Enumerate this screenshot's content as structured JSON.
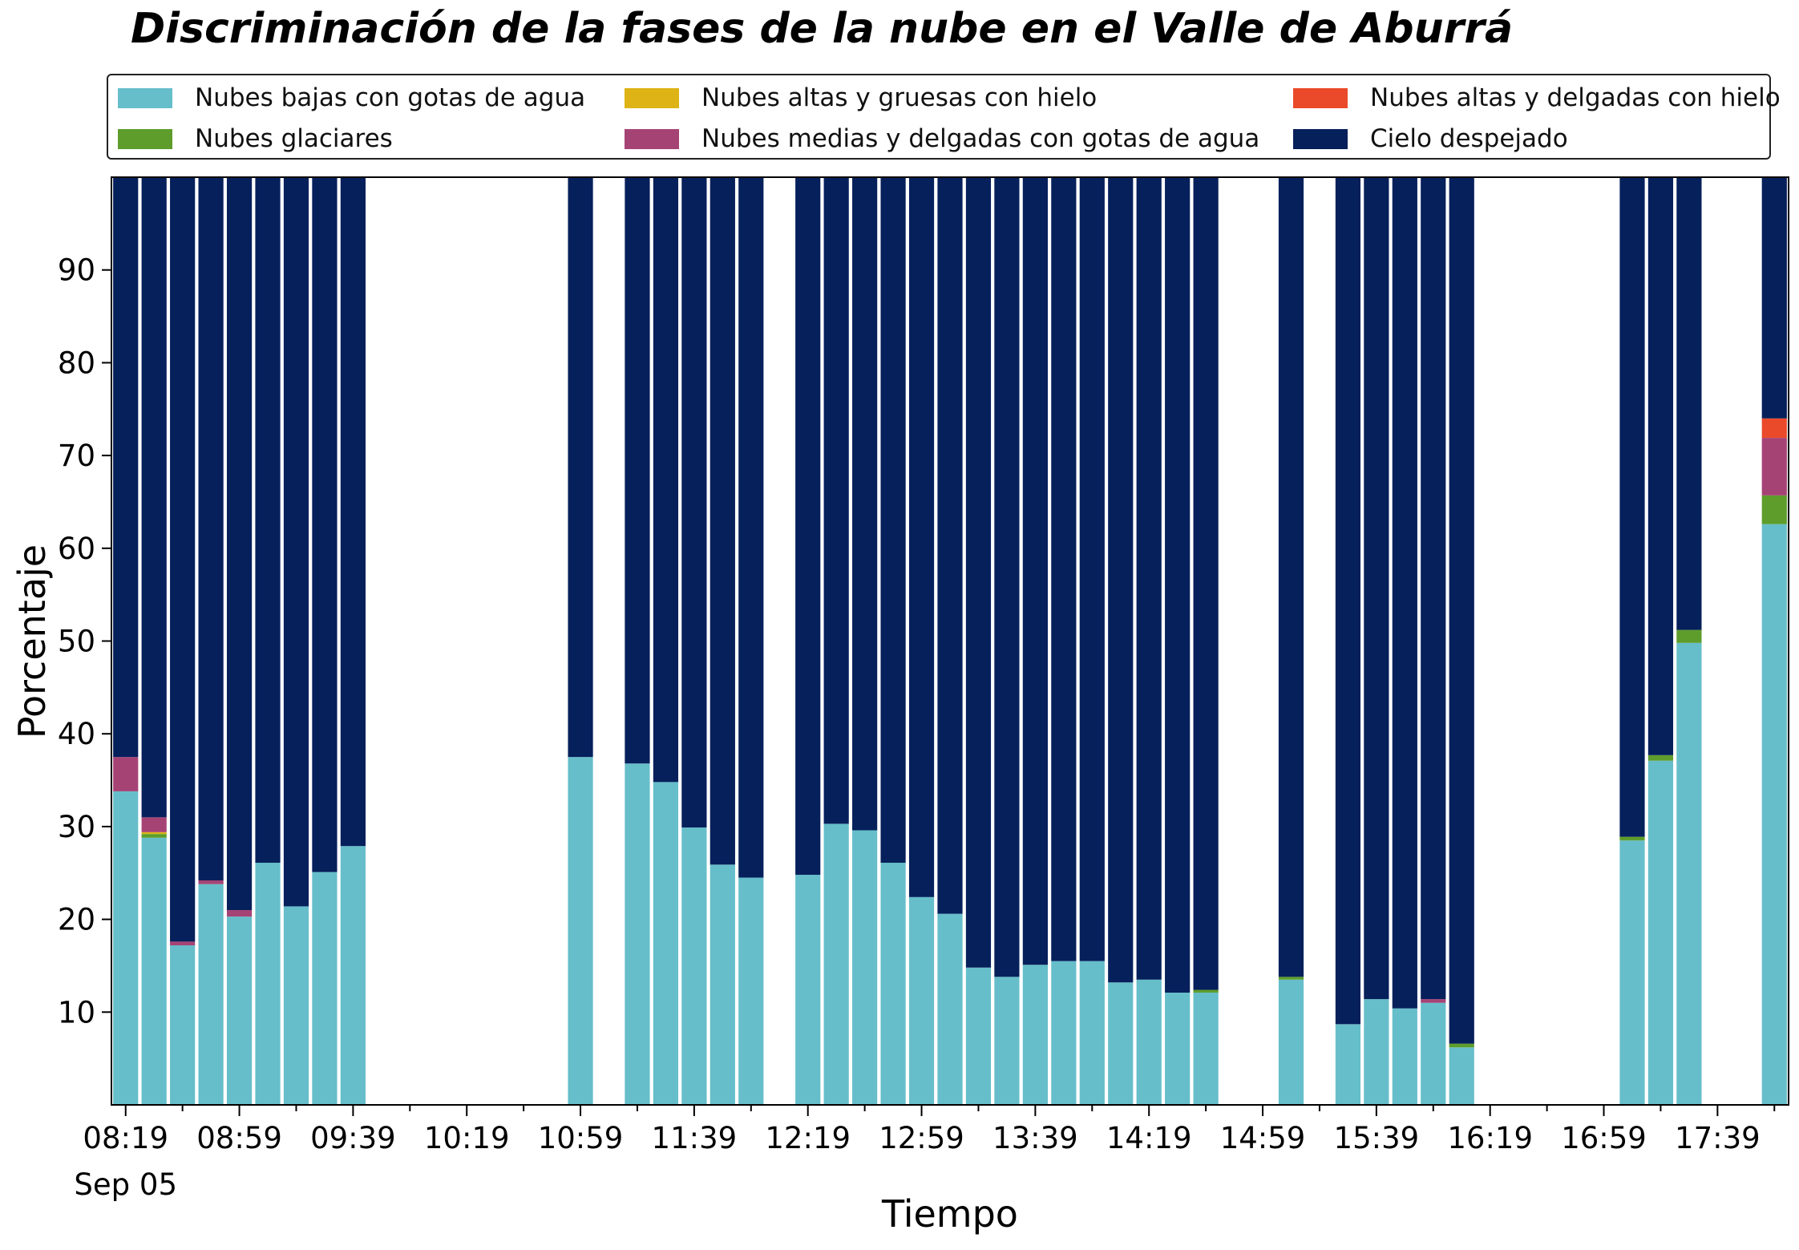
{
  "chart_data": {
    "type": "bar",
    "stacked": true,
    "title": "Discriminación de la fases de la nube en el Valle de Aburrá",
    "xlabel": "Tiempo",
    "ylabel": "Porcentaje",
    "ylim": [
      0,
      100
    ],
    "yticks": [
      10,
      20,
      30,
      40,
      50,
      60,
      70,
      80,
      90
    ],
    "grid": false,
    "legend_position": "top",
    "x_tick_labels": [
      "08:19",
      "08:59",
      "09:39",
      "10:19",
      "10:59",
      "11:39",
      "12:19",
      "12:59",
      "13:39",
      "14:19",
      "14:59",
      "15:39",
      "16:19",
      "16:59",
      "17:39"
    ],
    "x_date_label": "Sep 05",
    "x_minutes_start": "08:19",
    "x_minutes_end": "17:59",
    "x_slot_minutes": 10,
    "x": [
      "08:19",
      "08:29",
      "08:39",
      "08:49",
      "08:59",
      "09:09",
      "09:19",
      "09:29",
      "09:39",
      "10:59",
      "11:19",
      "11:29",
      "11:39",
      "11:49",
      "11:59",
      "12:19",
      "12:29",
      "12:39",
      "12:49",
      "12:59",
      "13:09",
      "13:19",
      "13:29",
      "13:39",
      "13:49",
      "13:59",
      "14:09",
      "14:19",
      "14:29",
      "14:39",
      "15:09",
      "15:29",
      "15:39",
      "15:49",
      "15:59",
      "16:09",
      "17:09",
      "17:19",
      "17:29",
      "17:59"
    ],
    "series": [
      {
        "name": "Nubes bajas con gotas de agua",
        "color": "#66BECA",
        "values": [
          33.8,
          28.8,
          17.2,
          23.8,
          20.3,
          26.1,
          21.4,
          25.1,
          27.9,
          37.5,
          36.8,
          34.8,
          29.9,
          25.9,
          24.5,
          24.8,
          30.3,
          29.6,
          26.1,
          22.4,
          20.6,
          14.8,
          13.8,
          15.1,
          15.5,
          15.5,
          13.2,
          13.5,
          12.1,
          12.1,
          13.5,
          8.7,
          11.4,
          10.4,
          11.0,
          6.2,
          28.5,
          37.1,
          49.8,
          62.6
        ]
      },
      {
        "name": "Nubes glaciares",
        "color": "#5E9D2C",
        "values": [
          0,
          0.4,
          0,
          0,
          0,
          0,
          0,
          0,
          0,
          0,
          0,
          0,
          0,
          0,
          0,
          0,
          0,
          0,
          0,
          0,
          0,
          0,
          0,
          0,
          0,
          0,
          0,
          0,
          0,
          0.3,
          0.3,
          0,
          0,
          0,
          0,
          0.4,
          0.4,
          0.6,
          1.4,
          3.1
        ]
      },
      {
        "name": "Nubes altas y gruesas con hielo",
        "color": "#DDB315",
        "values": [
          0,
          0.2,
          0,
          0,
          0,
          0,
          0,
          0,
          0,
          0,
          0,
          0,
          0,
          0,
          0,
          0,
          0,
          0,
          0,
          0,
          0,
          0,
          0,
          0,
          0,
          0,
          0,
          0,
          0,
          0,
          0,
          0,
          0,
          0,
          0,
          0,
          0,
          0,
          0,
          0
        ]
      },
      {
        "name": "Nubes medias y delgadas con gotas de agua",
        "color": "#A64375",
        "values": [
          3.7,
          1.6,
          0.4,
          0.4,
          0.7,
          0,
          0,
          0,
          0,
          0,
          0,
          0,
          0,
          0,
          0,
          0,
          0,
          0,
          0,
          0,
          0,
          0,
          0,
          0,
          0,
          0,
          0,
          0,
          0,
          0,
          0,
          0,
          0,
          0,
          0.4,
          0,
          0,
          0,
          0,
          6.2
        ]
      },
      {
        "name": "Nubes altas y delgadas con hielo",
        "color": "#EA4A2A",
        "values": [
          0,
          0,
          0,
          0,
          0,
          0,
          0,
          0,
          0,
          0,
          0,
          0,
          0,
          0,
          0,
          0,
          0,
          0,
          0,
          0,
          0,
          0,
          0,
          0,
          0,
          0,
          0,
          0,
          0,
          0,
          0,
          0,
          0,
          0,
          0,
          0,
          0,
          0,
          0,
          2.1
        ]
      },
      {
        "name": "Cielo despejado",
        "color": "#06205B",
        "values": [
          62.5,
          69.0,
          82.4,
          75.8,
          79.0,
          73.9,
          78.6,
          74.9,
          72.1,
          62.5,
          63.2,
          65.2,
          70.1,
          74.1,
          75.5,
          75.2,
          69.7,
          70.4,
          73.9,
          77.6,
          79.4,
          85.2,
          86.2,
          84.9,
          84.5,
          84.5,
          86.8,
          86.5,
          87.9,
          87.6,
          86.2,
          91.3,
          88.6,
          89.6,
          88.6,
          93.4,
          71.1,
          62.3,
          48.8,
          26.0
        ]
      }
    ]
  },
  "legend": {
    "items": [
      {
        "label": "Nubes bajas con gotas de agua",
        "color": "#66BECA"
      },
      {
        "label": "Nubes altas y gruesas con hielo",
        "color": "#DDB315"
      },
      {
        "label": "Nubes altas y delgadas con hielo",
        "color": "#EA4A2A"
      },
      {
        "label": "Nubes glaciares",
        "color": "#5E9D2C"
      },
      {
        "label": "Nubes medias y delgadas con gotas de agua",
        "color": "#A64375"
      },
      {
        "label": "Cielo despejado",
        "color": "#06205B"
      }
    ]
  }
}
